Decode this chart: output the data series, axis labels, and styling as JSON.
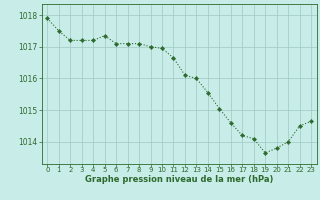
{
  "x": [
    0,
    1,
    2,
    3,
    4,
    5,
    6,
    7,
    8,
    9,
    10,
    11,
    12,
    13,
    14,
    15,
    16,
    17,
    18,
    19,
    20,
    21,
    22,
    23
  ],
  "y": [
    1017.9,
    1017.5,
    1017.2,
    1017.2,
    1017.2,
    1017.35,
    1017.1,
    1017.1,
    1017.1,
    1017.0,
    1016.95,
    1016.65,
    1016.1,
    1016.0,
    1015.55,
    1015.05,
    1014.6,
    1014.2,
    1014.1,
    1013.65,
    1013.8,
    1014.0,
    1014.5,
    1014.65
  ],
  "line_color": "#2d6a2d",
  "marker_color": "#2d6a2d",
  "bg_color": "#c8ece8",
  "grid_color": "#a0c8c4",
  "axis_color": "#2d6a2d",
  "tick_color": "#2d6a2d",
  "xlabel": "Graphe pression niveau de la mer (hPa)",
  "xlabel_color": "#2d6a2d",
  "ylim": [
    1013.3,
    1018.35
  ],
  "yticks": [
    1014,
    1015,
    1016,
    1017,
    1018
  ],
  "xlim": [
    -0.5,
    23.5
  ],
  "xticks": [
    0,
    1,
    2,
    3,
    4,
    5,
    6,
    7,
    8,
    9,
    10,
    11,
    12,
    13,
    14,
    15,
    16,
    17,
    18,
    19,
    20,
    21,
    22,
    23
  ]
}
